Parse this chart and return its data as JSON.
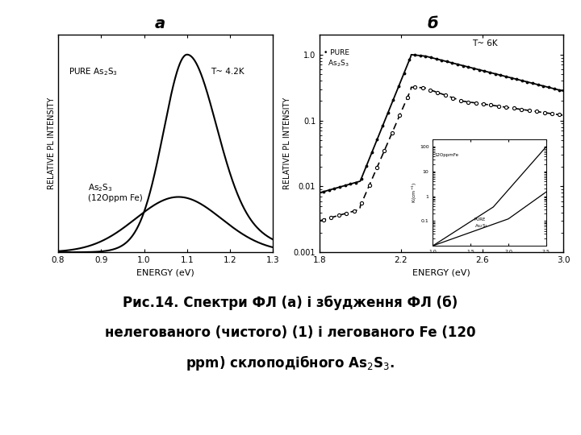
{
  "bg_color": "#ffffff",
  "panel_bg": "#ffffff",
  "title_a": "a",
  "title_b": "б",
  "caption_line1": "Рис.14. Спектри ФЛ (а) і збудження ФЛ (б)",
  "caption_line2": "нелегованого (чистого) (1) і легованого Fe (120",
  "caption_line3": "ppm) склоподібного As$_2$S$_3$."
}
